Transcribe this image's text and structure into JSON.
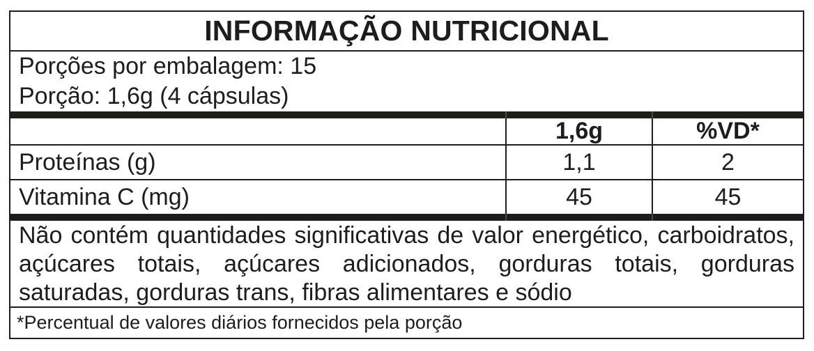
{
  "nutrition_label": {
    "title": "INFORMAÇÃO NUTRICIONAL",
    "servings_per_package": "Porções por embalagem: 15",
    "serving_size": "Porção: 1,6g (4 cápsulas)",
    "table": {
      "col_amount_header": "1,6g",
      "col_vd_header": "%VD*",
      "rows": [
        {
          "nutrient": "Proteínas (g)",
          "amount": "1,1",
          "vd": "2"
        },
        {
          "nutrient": "Vitamina C (mg)",
          "amount": "45",
          "vd": "45"
        }
      ]
    },
    "disclaimer": "Não contém quantidades significativas de valor energético, carboidratos, açúcares totais, açúcares adicionados, gorduras totais, gorduras saturadas, gorduras trans, fibras alimentares e sódio",
    "footnote": "*Percentual de valores diários fornecidos pela porção"
  },
  "colors": {
    "text": "#1d1d1b",
    "border": "#1d1d1b",
    "separator_bar": "#1d1d1b",
    "background": "#ffffff"
  }
}
